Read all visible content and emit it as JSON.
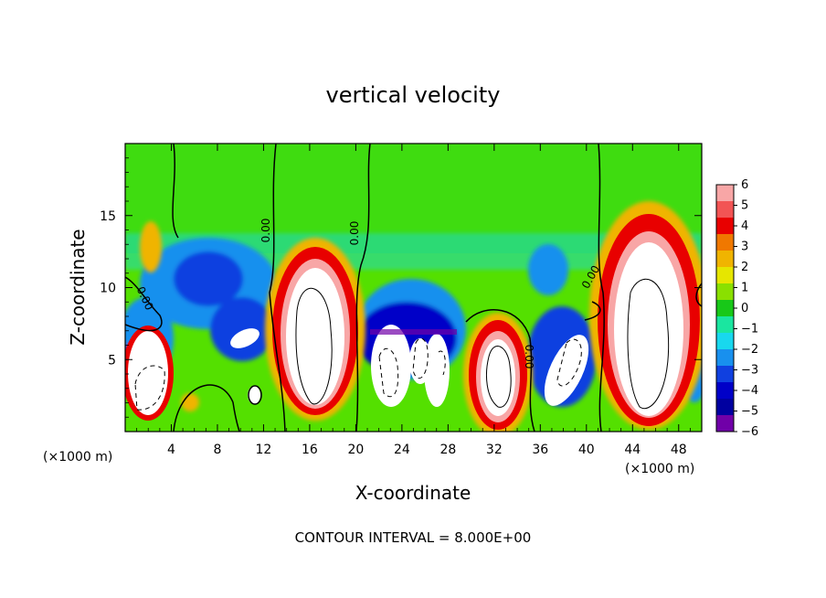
{
  "chart_data": {
    "type": "heatmap",
    "title": "vertical velocity",
    "xlabel": "X-coordinate",
    "ylabel": "Z-coordinate",
    "x_unit": "(×1000 m)",
    "x_ticks": [
      4,
      8,
      12,
      16,
      20,
      24,
      28,
      32,
      36,
      40,
      44,
      48
    ],
    "y_ticks": [
      5,
      10,
      15
    ],
    "xlim": [
      0,
      50
    ],
    "ylim": [
      0,
      20
    ],
    "colorbar": {
      "ticks": [
        "6",
        "5",
        "4",
        "3",
        "2",
        "1",
        "0",
        "−1",
        "−2",
        "−3",
        "−4",
        "−5",
        "−6"
      ],
      "range": [
        -6,
        6
      ],
      "colors": [
        "#f8a6a6",
        "#f25454",
        "#e80000",
        "#f07800",
        "#f0b400",
        "#e6e600",
        "#8ae000",
        "#18c818",
        "#1ae6a0",
        "#18d8ee",
        "#1890ee",
        "#1040e0",
        "#0000c8",
        "#0000a0",
        "#7000a8"
      ]
    },
    "contour_interval": "CONTOUR INTERVAL = 8.000E+00",
    "contour_labels": [
      "0.00",
      "0.00",
      "0.00",
      "0.00",
      "0.00",
      "0.00"
    ],
    "features": [
      {
        "x": 2,
        "z": 4.5,
        "w": 4
      },
      {
        "x": 2,
        "z": 12.5,
        "w": 2.5
      },
      {
        "x": 5.5,
        "z": 2,
        "w": 2
      },
      {
        "x": 7,
        "z": 10,
        "w": -5
      },
      {
        "x": 10,
        "z": 7,
        "w": -3
      },
      {
        "x": 11,
        "z": 6.5,
        "w": 6
      },
      {
        "x": 11,
        "z": 2.5,
        "w": 5
      },
      {
        "x": 16.5,
        "z": 7.5,
        "w": 8
      },
      {
        "x": 22.5,
        "z": 7.5,
        "w": -5
      },
      {
        "x": 23,
        "z": 5.5,
        "w": 7
      },
      {
        "x": 26.5,
        "z": 5,
        "w": 7
      },
      {
        "x": 32,
        "z": 4.5,
        "w": 8
      },
      {
        "x": 37,
        "z": 8.5,
        "w": -3
      },
      {
        "x": 38,
        "z": 5.5,
        "w": 7
      },
      {
        "x": 45.5,
        "z": 7,
        "w": 8
      },
      {
        "x": 36,
        "z": 12.5,
        "w": -3
      }
    ]
  }
}
